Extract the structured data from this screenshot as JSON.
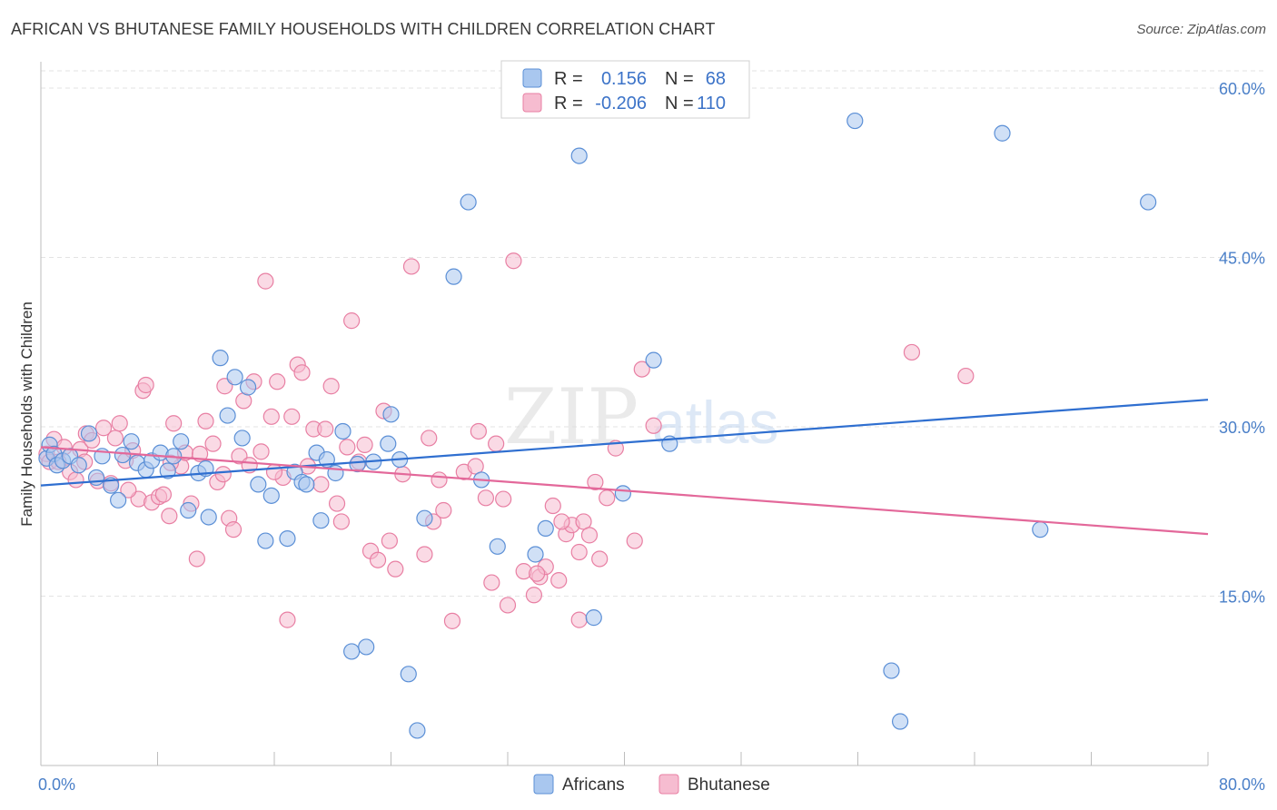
{
  "title": "AFRICAN VS BHUTANESE FAMILY HOUSEHOLDS WITH CHILDREN CORRELATION CHART",
  "source": "Source: ZipAtlas.com",
  "watermark": {
    "zip": "ZIP",
    "atlas": "atlas"
  },
  "legend": {
    "rows": [
      {
        "r_label": "R =",
        "r_value": "0.156",
        "n_label": "N =",
        "n_value": "68",
        "color": "#a9c7ef",
        "stroke": "#5b8fd6"
      },
      {
        "r_label": "R =",
        "r_value": "-0.206",
        "n_label": "N =",
        "n_value": "110",
        "color": "#f6bcd0",
        "stroke": "#e87fa3"
      }
    ]
  },
  "bottom_legend": [
    {
      "label": "Africans",
      "color": "#a9c7ef",
      "stroke": "#5b8fd6"
    },
    {
      "label": "Bhutanese",
      "color": "#f6bcd0",
      "stroke": "#e87fa3"
    }
  ],
  "chart_data": {
    "type": "scatter",
    "title": "AFRICAN VS BHUTANESE FAMILY HOUSEHOLDS WITH CHILDREN CORRELATION CHART",
    "xlabel": "",
    "ylabel": "Family Households with Children",
    "xlim": [
      0,
      80
    ],
    "ylim": [
      0,
      63
    ],
    "x_tick_labels": [
      "0.0%",
      "80.0%"
    ],
    "y_ticks": [
      15,
      30,
      45,
      60
    ],
    "y_tick_labels": [
      "15.0%",
      "30.0%",
      "45.0%",
      "60.0%"
    ],
    "grid": true,
    "legend_position": "top-center",
    "series": [
      {
        "name": "Africans",
        "color": "#5b8fd6",
        "fill": "#a9c7ef",
        "trend": {
          "x": [
            0,
            80
          ],
          "y": [
            24.8,
            32.4
          ],
          "color": "#2f6fd0"
        },
        "points": [
          [
            0.4,
            27.2
          ],
          [
            0.6,
            28.4
          ],
          [
            0.9,
            27.6
          ],
          [
            1.1,
            26.6
          ],
          [
            1.5,
            27.0
          ],
          [
            2.0,
            27.4
          ],
          [
            2.6,
            26.6
          ],
          [
            3.3,
            29.4
          ],
          [
            3.8,
            25.5
          ],
          [
            4.2,
            27.4
          ],
          [
            4.8,
            24.8
          ],
          [
            5.3,
            23.5
          ],
          [
            5.6,
            27.5
          ],
          [
            6.2,
            28.7
          ],
          [
            6.6,
            26.8
          ],
          [
            7.2,
            26.2
          ],
          [
            7.6,
            27.0
          ],
          [
            8.2,
            27.7
          ],
          [
            8.7,
            26.1
          ],
          [
            9.1,
            27.4
          ],
          [
            9.6,
            28.7
          ],
          [
            10.1,
            22.6
          ],
          [
            10.8,
            25.9
          ],
          [
            11.3,
            26.3
          ],
          [
            11.5,
            22.0
          ],
          [
            12.3,
            36.1
          ],
          [
            12.8,
            31.0
          ],
          [
            13.3,
            34.4
          ],
          [
            13.8,
            29.0
          ],
          [
            14.2,
            33.5
          ],
          [
            14.9,
            24.9
          ],
          [
            15.4,
            19.9
          ],
          [
            15.8,
            23.9
          ],
          [
            16.9,
            20.1
          ],
          [
            17.4,
            26.0
          ],
          [
            17.9,
            25.1
          ],
          [
            18.2,
            24.9
          ],
          [
            18.9,
            27.7
          ],
          [
            19.2,
            21.7
          ],
          [
            19.6,
            27.1
          ],
          [
            20.2,
            25.9
          ],
          [
            20.7,
            29.6
          ],
          [
            21.3,
            10.1
          ],
          [
            21.7,
            26.7
          ],
          [
            22.3,
            10.5
          ],
          [
            22.8,
            26.9
          ],
          [
            23.8,
            28.5
          ],
          [
            24.0,
            31.1
          ],
          [
            24.6,
            27.1
          ],
          [
            25.2,
            8.1
          ],
          [
            25.8,
            3.1
          ],
          [
            26.3,
            21.9
          ],
          [
            28.3,
            43.3
          ],
          [
            29.3,
            49.9
          ],
          [
            30.2,
            25.3
          ],
          [
            31.3,
            19.4
          ],
          [
            33.9,
            18.7
          ],
          [
            34.6,
            21.0
          ],
          [
            36.9,
            54.0
          ],
          [
            37.9,
            13.1
          ],
          [
            39.9,
            24.1
          ],
          [
            42.0,
            35.9
          ],
          [
            43.1,
            28.5
          ],
          [
            55.8,
            57.1
          ],
          [
            58.3,
            8.4
          ],
          [
            58.9,
            3.9
          ],
          [
            65.9,
            56.0
          ],
          [
            68.5,
            20.9
          ],
          [
            75.9,
            49.9
          ]
        ]
      },
      {
        "name": "Bhutanese",
        "color": "#e87fa3",
        "fill": "#f6bcd0",
        "trend": {
          "x": [
            0,
            80
          ],
          "y": [
            28.2,
            20.5
          ],
          "color": "#e3689a"
        },
        "points": [
          [
            0.4,
            27.6
          ],
          [
            0.6,
            26.9
          ],
          [
            0.9,
            28.9
          ],
          [
            1.2,
            26.9
          ],
          [
            1.6,
            28.2
          ],
          [
            2.0,
            26.0
          ],
          [
            2.4,
            25.3
          ],
          [
            2.7,
            28.0
          ],
          [
            3.1,
            29.4
          ],
          [
            3.5,
            28.8
          ],
          [
            3.9,
            25.2
          ],
          [
            4.3,
            29.9
          ],
          [
            4.8,
            25.0
          ],
          [
            5.1,
            29.0
          ],
          [
            5.4,
            30.3
          ],
          [
            5.8,
            27.0
          ],
          [
            6.3,
            27.9
          ],
          [
            6.7,
            23.6
          ],
          [
            7.0,
            33.2
          ],
          [
            7.2,
            33.7
          ],
          [
            7.6,
            23.3
          ],
          [
            8.1,
            23.8
          ],
          [
            8.4,
            24.0
          ],
          [
            8.8,
            22.1
          ],
          [
            9.1,
            30.3
          ],
          [
            9.6,
            26.5
          ],
          [
            9.9,
            27.7
          ],
          [
            10.3,
            23.2
          ],
          [
            10.7,
            18.3
          ],
          [
            10.9,
            27.6
          ],
          [
            11.3,
            30.5
          ],
          [
            11.8,
            28.5
          ],
          [
            12.1,
            25.1
          ],
          [
            12.6,
            33.6
          ],
          [
            12.9,
            21.9
          ],
          [
            13.2,
            20.9
          ],
          [
            13.6,
            27.4
          ],
          [
            13.9,
            32.3
          ],
          [
            14.3,
            26.6
          ],
          [
            14.6,
            34.0
          ],
          [
            15.1,
            27.8
          ],
          [
            15.4,
            42.9
          ],
          [
            15.8,
            30.9
          ],
          [
            16.2,
            34.0
          ],
          [
            16.6,
            25.5
          ],
          [
            16.9,
            12.9
          ],
          [
            17.2,
            30.9
          ],
          [
            17.6,
            35.5
          ],
          [
            17.9,
            34.8
          ],
          [
            18.3,
            26.5
          ],
          [
            18.7,
            29.8
          ],
          [
            19.2,
            24.9
          ],
          [
            19.5,
            29.8
          ],
          [
            19.9,
            33.6
          ],
          [
            20.3,
            23.2
          ],
          [
            20.6,
            21.6
          ],
          [
            21.0,
            28.2
          ],
          [
            21.3,
            39.4
          ],
          [
            21.8,
            26.9
          ],
          [
            22.2,
            28.4
          ],
          [
            22.6,
            19.0
          ],
          [
            23.1,
            18.2
          ],
          [
            23.5,
            31.4
          ],
          [
            23.9,
            19.9
          ],
          [
            24.3,
            17.4
          ],
          [
            24.8,
            25.8
          ],
          [
            25.4,
            44.2
          ],
          [
            26.3,
            18.7
          ],
          [
            26.9,
            21.6
          ],
          [
            27.3,
            25.3
          ],
          [
            27.6,
            22.6
          ],
          [
            28.2,
            12.8
          ],
          [
            29.0,
            26.0
          ],
          [
            30.0,
            29.6
          ],
          [
            30.5,
            23.7
          ],
          [
            30.9,
            16.2
          ],
          [
            31.2,
            28.5
          ],
          [
            31.7,
            23.6
          ],
          [
            32.0,
            14.2
          ],
          [
            32.4,
            44.7
          ],
          [
            33.1,
            17.2
          ],
          [
            33.8,
            15.1
          ],
          [
            34.2,
            16.7
          ],
          [
            34.6,
            17.6
          ],
          [
            35.1,
            23.0
          ],
          [
            35.5,
            16.4
          ],
          [
            36.0,
            20.5
          ],
          [
            36.4,
            21.3
          ],
          [
            36.9,
            12.9
          ],
          [
            37.2,
            21.6
          ],
          [
            37.6,
            20.4
          ],
          [
            38.0,
            25.1
          ],
          [
            38.3,
            18.3
          ],
          [
            38.8,
            23.7
          ],
          [
            39.4,
            28.1
          ],
          [
            40.7,
            19.9
          ],
          [
            41.2,
            35.1
          ],
          [
            42.0,
            30.1
          ],
          [
            36.9,
            18.9
          ],
          [
            35.7,
            21.6
          ],
          [
            59.7,
            36.6
          ],
          [
            63.4,
            34.5
          ],
          [
            34.0,
            17.0
          ],
          [
            26.6,
            29.0
          ],
          [
            29.8,
            26.5
          ],
          [
            16.0,
            26.0
          ],
          [
            12.5,
            25.8
          ],
          [
            8.9,
            26.8
          ],
          [
            6.0,
            24.4
          ],
          [
            3.0,
            26.9
          ]
        ]
      }
    ]
  }
}
